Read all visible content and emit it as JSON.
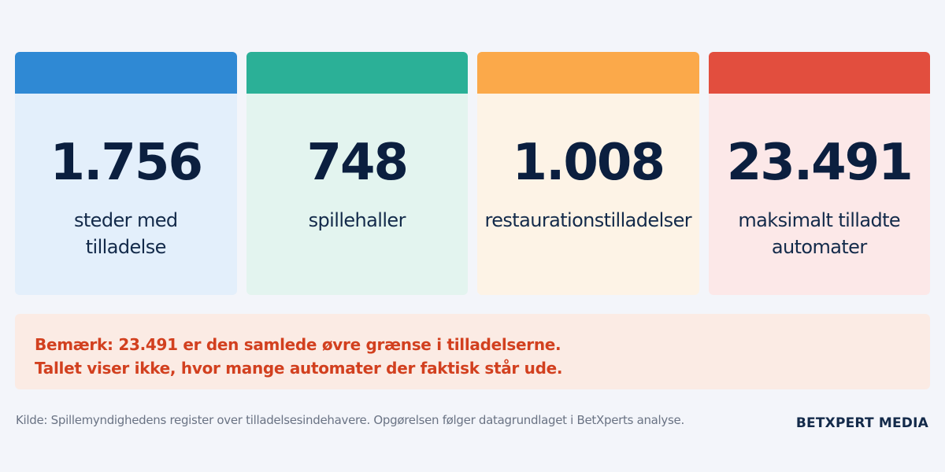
{
  "cards": [
    {
      "value": "1.756",
      "label": "steder med\ntilladelse",
      "bar_color": "#2f89d4",
      "bg_color": "#e3effb"
    },
    {
      "value": "748",
      "label": "spillehaller",
      "bar_color": "#2bb097",
      "bg_color": "#e3f4ef"
    },
    {
      "value": "1.008",
      "label": "restaurationstilladelser",
      "bar_color": "#fba94a",
      "bg_color": "#fdf3e6"
    },
    {
      "value": "23.491",
      "label": "maksimalt tilladte\nautomater",
      "bar_color": "#e24e3e",
      "bg_color": "#fce8e8"
    }
  ],
  "note": {
    "line1": "Bemærk: 23.491 er den samlede øvre grænse i tilladelserne.",
    "line2": "Tallet viser ikke, hvor mange automater der faktisk står ude."
  },
  "footer": {
    "source": "Kilde: Spillemyndighedens register over tilladelsesindehavere. Opgørelsen følger datagrundlaget i BetXperts analyse.",
    "brand": "BETXPERT MEDIA"
  },
  "colors": {
    "background": "#f3f5fa",
    "value_text": "#0b1f3f",
    "note_bg": "#fbebe4",
    "note_text": "#d2401f"
  }
}
